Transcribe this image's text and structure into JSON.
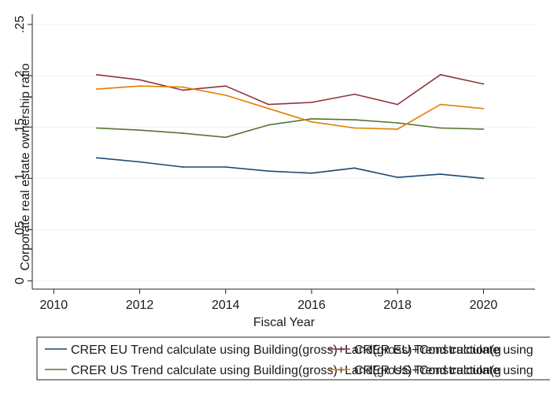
{
  "chart_data": {
    "type": "line",
    "title": "",
    "xlabel": "Fiscal Year",
    "ylabel": "Corporate real estate ownership ratio",
    "xlim": [
      2009.5,
      2021.2
    ],
    "ylim": [
      -0.008,
      0.26
    ],
    "xticks": [
      2010,
      2012,
      2014,
      2016,
      2018,
      2020
    ],
    "yticks": [
      0,
      0.05,
      0.1,
      0.15,
      0.2,
      0.25
    ],
    "ytick_labels": [
      "0",
      ".05",
      ".1",
      ".15",
      ".2",
      ".25"
    ],
    "grid": "horizontal",
    "legend_position": "bottom",
    "x": [
      2011,
      2012,
      2013,
      2014,
      2015,
      2016,
      2017,
      2018,
      2019,
      2020
    ],
    "series": [
      {
        "legend": "CRER EU Trend calculate using Building(gross)+Land(gross)+Construction(g",
        "color": "#1a476f",
        "values": [
          0.12,
          0.116,
          0.111,
          0.111,
          0.107,
          0.105,
          0.11,
          0.101,
          0.104,
          0.1
        ]
      },
      {
        "legend": "CRER US Trend calculate using Building(gross)+Land(gross)+Construction(g",
        "color": "#55752f",
        "values": [
          0.149,
          0.147,
          0.144,
          0.14,
          0.152,
          0.158,
          0.157,
          0.154,
          0.149,
          0.148
        ]
      },
      {
        "legend": "CRER EU Trend calculate using",
        "color": "#90353b",
        "values": [
          0.201,
          0.196,
          0.186,
          0.19,
          0.172,
          0.174,
          0.182,
          0.172,
          0.201,
          0.192
        ]
      },
      {
        "legend": "CRER US Trend calculate using",
        "color": "#e37e00",
        "values": [
          0.187,
          0.19,
          0.189,
          0.181,
          0.168,
          0.155,
          0.149,
          0.148,
          0.172,
          0.168
        ]
      }
    ]
  }
}
